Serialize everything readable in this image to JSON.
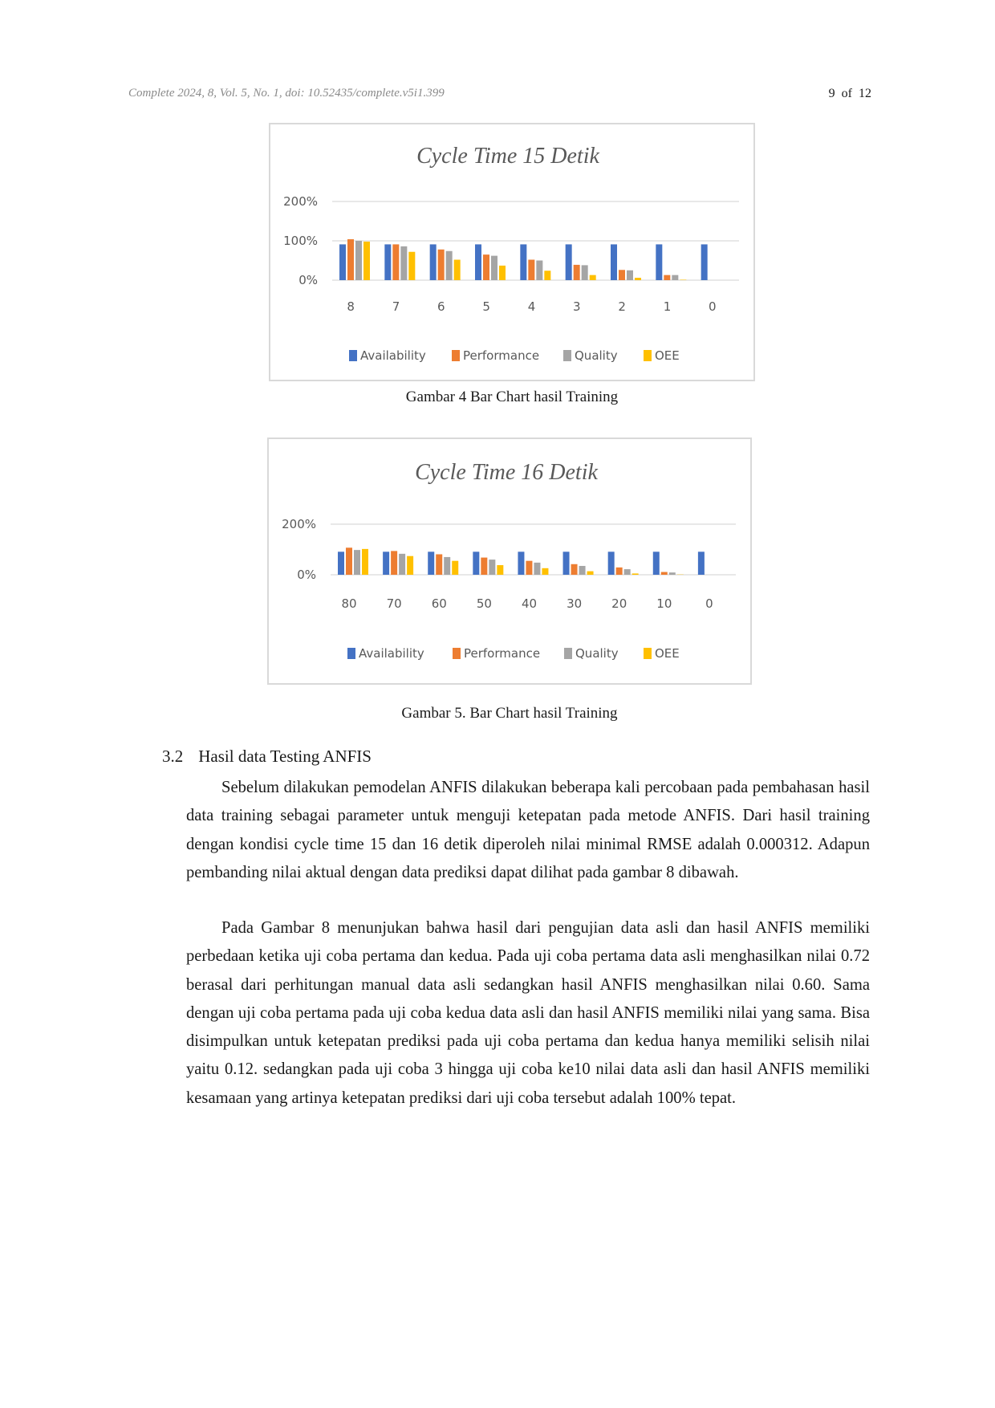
{
  "header": {
    "citation": "Complete 2024, 8, Vol. 5, No. 1, doi: 10.52435/complete.v5i1.399",
    "page_number": "9",
    "page_of": "of",
    "page_total": "12"
  },
  "colors": {
    "availability": "#4472C4",
    "performance": "#ED7D31",
    "quality": "#A5A5A5",
    "oee": "#FFC000",
    "axis_text": "#595959",
    "gridline": "#d9d9d9"
  },
  "figures": [
    {
      "caption": "Gambar 4 Bar Chart hasil Training"
    },
    {
      "caption": "Gambar 5. Bar Chart hasil Training"
    }
  ],
  "chart_data": [
    {
      "type": "bar",
      "title": "Cycle Time 15 Detik",
      "categories": [
        "8",
        "7",
        "6",
        "5",
        "4",
        "3",
        "2",
        "1",
        "0"
      ],
      "y_tick_labels": [
        "0%",
        "100%",
        "200%"
      ],
      "ylim": [
        0,
        200
      ],
      "grid": true,
      "legend_position": "bottom",
      "series": [
        {
          "name": "Availability",
          "values": [
            91,
            91,
            91,
            91,
            91,
            91,
            91,
            91,
            91
          ]
        },
        {
          "name": "Performance",
          "values": [
            104,
            91,
            78,
            65,
            52,
            39,
            26,
            13,
            0
          ]
        },
        {
          "name": "Quality",
          "values": [
            100,
            86,
            74,
            62,
            50,
            38,
            25,
            13,
            0
          ]
        },
        {
          "name": "OEE",
          "values": [
            98,
            72,
            52,
            37,
            24,
            13,
            6,
            1,
            0
          ]
        }
      ]
    },
    {
      "type": "bar",
      "title": "Cycle Time 16 Detik",
      "categories": [
        "80",
        "70",
        "60",
        "50",
        "40",
        "30",
        "20",
        "10",
        "0"
      ],
      "y_tick_labels": [
        "0%",
        "200%"
      ],
      "ylim": [
        0,
        200
      ],
      "grid": true,
      "legend_position": "bottom",
      "series": [
        {
          "name": "Availability",
          "values": [
            91,
            91,
            91,
            91,
            91,
            91,
            91,
            91,
            91
          ]
        },
        {
          "name": "Performance",
          "values": [
            107,
            94,
            81,
            68,
            55,
            42,
            29,
            11,
            0
          ]
        },
        {
          "name": "Quality",
          "values": [
            98,
            83,
            70,
            60,
            48,
            35,
            22,
            9,
            0
          ]
        },
        {
          "name": "OEE",
          "values": [
            102,
            74,
            55,
            38,
            26,
            14,
            5,
            1,
            0
          ]
        }
      ]
    }
  ],
  "section": {
    "number": "3.2",
    "title": "Hasil data Testing ANFIS"
  },
  "paragraphs": [
    "Sebelum dilakukan pemodelan ANFIS dilakukan beberapa kali percobaan pada pembahasan hasil data training sebagai parameter untuk menguji ketepatan pada metode ANFIS. Dari hasil training dengan kondisi cycle time 15 dan 16 detik diperoleh nilai minimal RMSE adalah 0.000312. Adapun pembanding nilai aktual dengan data prediksi dapat dilihat pada gambar 8 dibawah.",
    "Pada Gambar 8 menunjukan bahwa hasil dari pengujian data asli dan hasil ANFIS memiliki perbedaan ketika uji coba pertama dan kedua. Pada uji coba pertama data asli menghasilkan nilai 0.72 berasal dari perhitungan manual data asli sedangkan hasil ANFIS menghasilkan nilai 0.60. Sama dengan uji coba pertama pada uji coba kedua data asli dan hasil ANFIS memiliki nilai yang sama. Bisa disimpulkan untuk ketepatan prediksi pada uji coba pertama dan kedua hanya memiliki selisih nilai yaitu 0.12. sedangkan pada uji coba 3 hingga uji coba ke10 nilai data asli dan hasil ANFIS memiliki kesamaan yang artinya ketepatan prediksi dari uji coba tersebut adalah 100% tepat."
  ]
}
